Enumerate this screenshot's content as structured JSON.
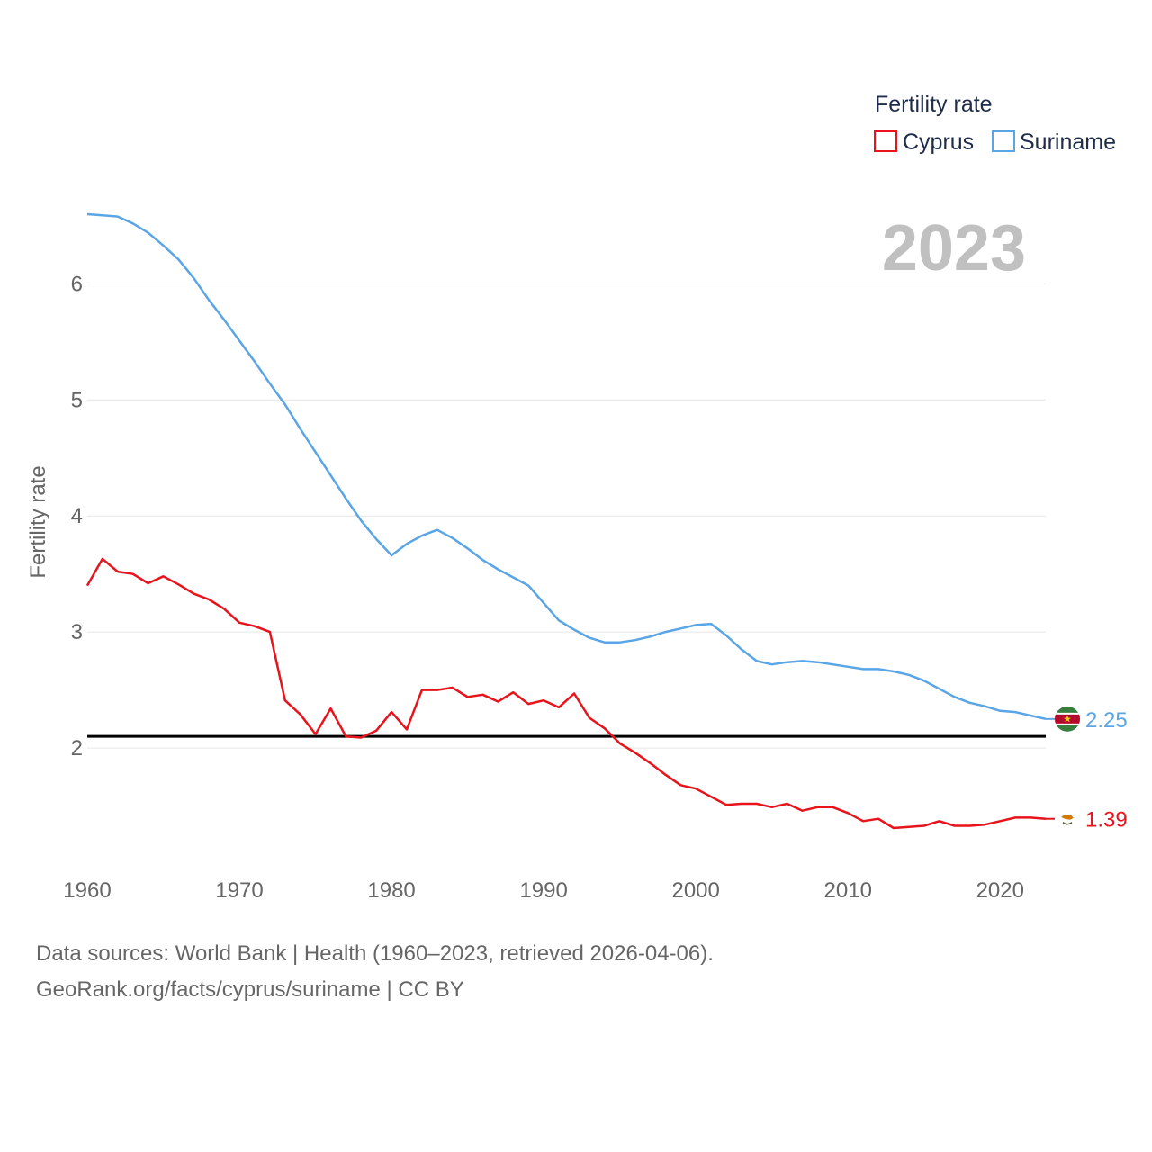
{
  "chart_data": {
    "type": "line",
    "title": "",
    "legend_title": "Fertility rate",
    "ylabel": "Fertility rate",
    "xlabel": "",
    "current_year": "2023",
    "xlim": [
      1960,
      2023
    ],
    "ylim": [
      1,
      6.6
    ],
    "x_ticks": [
      1960,
      1970,
      1980,
      1990,
      2000,
      2010,
      2020
    ],
    "y_ticks": [
      2,
      3,
      4,
      5,
      6
    ],
    "reference_line": 2.1,
    "colors": {
      "Cyprus": "#e8131b",
      "Suriname": "#5aa5e6",
      "reference": "#000000"
    },
    "x": [
      1960,
      1961,
      1962,
      1963,
      1964,
      1965,
      1966,
      1967,
      1968,
      1969,
      1970,
      1971,
      1972,
      1973,
      1974,
      1975,
      1976,
      1977,
      1978,
      1979,
      1980,
      1981,
      1982,
      1983,
      1984,
      1985,
      1986,
      1987,
      1988,
      1989,
      1990,
      1991,
      1992,
      1993,
      1994,
      1995,
      1996,
      1997,
      1998,
      1999,
      2000,
      2001,
      2002,
      2003,
      2004,
      2005,
      2006,
      2007,
      2008,
      2009,
      2010,
      2011,
      2012,
      2013,
      2014,
      2015,
      2016,
      2017,
      2018,
      2019,
      2020,
      2021,
      2022,
      2023
    ],
    "series": [
      {
        "name": "Suriname",
        "end_label": "2.25",
        "values": [
          6.6,
          6.59,
          6.58,
          6.52,
          6.44,
          6.33,
          6.21,
          6.05,
          5.86,
          5.69,
          5.51,
          5.33,
          5.14,
          4.96,
          4.75,
          4.55,
          4.35,
          4.15,
          3.96,
          3.8,
          3.66,
          3.76,
          3.83,
          3.88,
          3.81,
          3.72,
          3.62,
          3.54,
          3.47,
          3.4,
          3.25,
          3.1,
          3.02,
          2.95,
          2.91,
          2.91,
          2.93,
          2.96,
          3.0,
          3.03,
          3.06,
          3.07,
          2.97,
          2.85,
          2.75,
          2.72,
          2.74,
          2.75,
          2.74,
          2.72,
          2.7,
          2.68,
          2.68,
          2.66,
          2.63,
          2.58,
          2.51,
          2.44,
          2.39,
          2.36,
          2.32,
          2.31,
          2.28,
          2.25
        ]
      },
      {
        "name": "Cyprus",
        "end_label": "1.39",
        "values": [
          3.4,
          3.63,
          3.52,
          3.5,
          3.42,
          3.48,
          3.41,
          3.33,
          3.28,
          3.2,
          3.08,
          3.05,
          3.0,
          2.41,
          2.29,
          2.12,
          2.34,
          2.1,
          2.09,
          2.15,
          2.31,
          2.16,
          2.5,
          2.5,
          2.52,
          2.44,
          2.46,
          2.4,
          2.48,
          2.38,
          2.41,
          2.35,
          2.47,
          2.26,
          2.17,
          2.04,
          1.96,
          1.87,
          1.77,
          1.68,
          1.65,
          1.58,
          1.51,
          1.52,
          1.52,
          1.49,
          1.52,
          1.46,
          1.49,
          1.49,
          1.44,
          1.37,
          1.39,
          1.31,
          1.32,
          1.33,
          1.37,
          1.33,
          1.33,
          1.34,
          1.37,
          1.4,
          1.4,
          1.39
        ]
      }
    ]
  },
  "legend": {
    "items": [
      {
        "label": "Cyprus",
        "color": "#e8131b"
      },
      {
        "label": "Suriname",
        "color": "#5aa5e6"
      }
    ]
  },
  "footer": {
    "source_line": "Data sources: World Bank | Health (1960–2023, retrieved 2026-04-06).",
    "credit_line": "GeoRank.org/facts/cyprus/suriname | CC BY"
  },
  "icons": {
    "suriname": "suriname-flag-icon",
    "cyprus": "cyprus-flag-icon"
  }
}
